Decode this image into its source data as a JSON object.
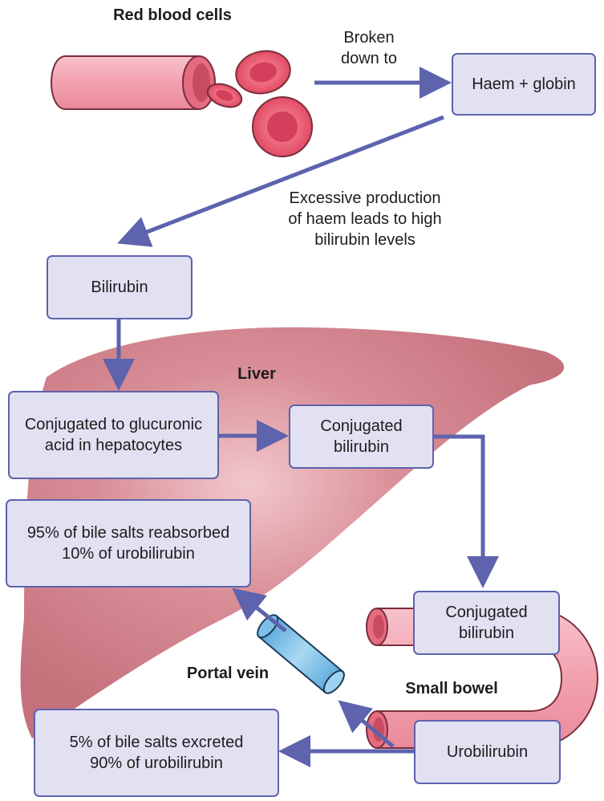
{
  "colors": {
    "arrow": "#5d63ad",
    "box_fill": "#e2e1f2",
    "liver": "#c8737d",
    "blood_cell": "#e5516a",
    "vessel": "#f3a6b2",
    "portal_vein": "#8ec7ea"
  },
  "labels": {
    "red_blood_cells": "Red blood cells",
    "broken_down_to": "Broken\ndown to",
    "excessive_production": "Excessive production\nof haem leads to high\nbilirubin levels",
    "liver": "Liver",
    "portal_vein": "Portal vein",
    "small_bowel": "Small bowel"
  },
  "boxes": {
    "haem_globin": "Haem + globin",
    "bilirubin": "Bilirubin",
    "conjugation": "Conjugated to glucuronic\nacid in hepatocytes",
    "conjugated_bilirubin_liver": "Conjugated\nbilirubin",
    "reabsorbed": "95% of bile salts reabsorbed\n10% of urobilirubin",
    "conjugated_bilirubin_bowel": "Conjugated\nbilirubin",
    "urobilirubin": "Urobilirubin",
    "excreted": "5% of bile salts excreted\n90% of urobilirubin"
  }
}
